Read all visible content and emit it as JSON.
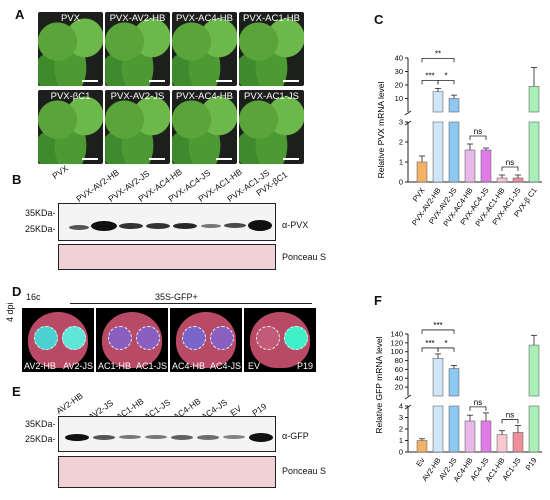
{
  "panels": {
    "a": "A",
    "b": "B",
    "c": "C",
    "d": "D",
    "e": "E",
    "f": "F"
  },
  "panel_a": {
    "plants": [
      "PVX",
      "PVX-AV2-HB",
      "PVX-AC4-HB",
      "PVX-AC1-HB",
      "PVX-βC1",
      "PVX-AV2-JS",
      "PVX-AC4-HB",
      "PVX-AC1-JS"
    ]
  },
  "panel_b": {
    "lanes": [
      "PVX",
      "PVX-AV2-HB",
      "PVX-AV2-JS",
      "PVX-AC4-HB",
      "PVX-AC4-JS",
      "PVX-AC1-HB",
      "PVX-AC1-JS",
      "PVX-βC1"
    ],
    "marker_35": "35KDa-",
    "marker_25": "25KDa-",
    "antibody": "α-PVX",
    "stain": "Ponceau S"
  },
  "panel_d": {
    "left_label": "16c",
    "header": "35S-GFP+",
    "side_label": "4 dpi",
    "leaf_labels": [
      [
        "AV2-HB",
        "AV2-JS"
      ],
      [
        "AC1-HB",
        "AC1-JS"
      ],
      [
        "AC4-HB",
        "AC4-JS"
      ],
      [
        "EV",
        "P19"
      ]
    ]
  },
  "panel_e": {
    "lanes": [
      "AV2-HB",
      "AV2-JS",
      "AC1-HB",
      "AC1-JS",
      "AC4-HB",
      "AC4-JS",
      "EV",
      "P19"
    ],
    "marker_35": "35KDa-",
    "marker_25": "25KDa-",
    "antibody": "α-GFP",
    "stain": "Ponceau S"
  },
  "chart_data": [
    {
      "type": "bar",
      "ylabel": "Relative PVX mRNA level",
      "broken_axis": true,
      "yticks_lower": [
        "0",
        "1",
        "2",
        "3"
      ],
      "yticks_upper": [
        "10",
        "20",
        "30",
        "40"
      ],
      "categories": [
        "PVX",
        "PVX-AV2-HB",
        "PVX-AV2-JS",
        "PVX-AC4-HB",
        "PVX-AC4-JS",
        "PVX-AC1-HB",
        "PVX-AC1-JS",
        "PVX-β C1"
      ],
      "values": [
        1.0,
        15,
        10,
        1.6,
        1.6,
        0.2,
        0.2,
        19
      ],
      "errors": [
        0.3,
        2.5,
        2.5,
        0.3,
        0.1,
        0.15,
        0.15,
        14
      ],
      "colors": [
        "#f5b266",
        "#cfe6f8",
        "#8cc8f2",
        "#e8b8ea",
        "#e07be8",
        "#f7c8cf",
        "#ee8e9a",
        "#a8f0b8"
      ],
      "significance": [
        {
          "from": 0,
          "to": 1,
          "label": "***"
        },
        {
          "from": 1,
          "to": 2,
          "label": "*"
        },
        {
          "from": 0,
          "to": 2,
          "label": "**"
        },
        {
          "from": 3,
          "to": 4,
          "label": "ns"
        },
        {
          "from": 5,
          "to": 6,
          "label": "ns"
        }
      ]
    },
    {
      "type": "bar",
      "ylabel": "Relative GFP mRNA level",
      "broken_axis": true,
      "yticks_lower": [
        "0",
        "1",
        "2",
        "3",
        "4"
      ],
      "yticks_upper": [
        "20",
        "40",
        "60",
        "80",
        "100",
        "120",
        "140"
      ],
      "categories": [
        "Ev",
        "AV2-HB",
        "AV2-JS",
        "AC4-HB",
        "AC4-JS",
        "AC1-HB",
        "AC1-JS",
        "P19"
      ],
      "values": [
        1.0,
        85,
        62,
        2.7,
        2.7,
        1.5,
        1.7,
        115
      ],
      "errors": [
        0.15,
        10,
        7,
        0.5,
        0.7,
        0.35,
        0.6,
        22
      ],
      "colors": [
        "#f5b266",
        "#cfe6f8",
        "#8cc8f2",
        "#e8b8ea",
        "#e07be8",
        "#f7c8cf",
        "#ee8e9a",
        "#a8f0b8"
      ],
      "significance": [
        {
          "from": 0,
          "to": 1,
          "label": "***"
        },
        {
          "from": 1,
          "to": 2,
          "label": "*"
        },
        {
          "from": 0,
          "to": 2,
          "label": "***"
        },
        {
          "from": 3,
          "to": 4,
          "label": "ns"
        },
        {
          "from": 5,
          "to": 6,
          "label": "ns"
        }
      ]
    }
  ]
}
